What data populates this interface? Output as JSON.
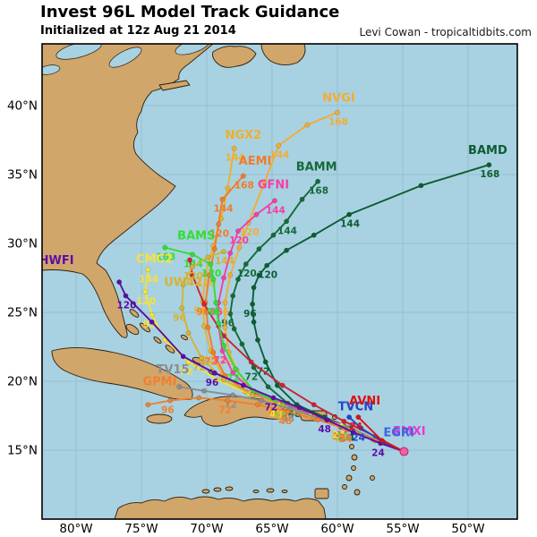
{
  "header": {
    "title": "Invest 96L Model Track Guidance",
    "subtitle": "Initialized at 12z Aug 21 2014",
    "credit": "Levi Cowan - tropicaltidbits.com"
  },
  "map": {
    "sea_color": "#a8d2e2",
    "land_color": "#d1a66b",
    "coast_color": "#2b1d0e",
    "grid_color": "#93bed2",
    "frame_color": "#000000",
    "axis_text_color": "#000000"
  },
  "chart_data": {
    "type": "line",
    "title": "Invest 96L Model Track Guidance",
    "subtitle": "Initialized at 12z Aug 21 2014",
    "x_axis": {
      "label": "Longitude",
      "ticks": [
        {
          "label": "80°W",
          "lon_w": 80
        },
        {
          "label": "75°W",
          "lon_w": 75
        },
        {
          "label": "70°W",
          "lon_w": 70
        },
        {
          "label": "65°W",
          "lon_w": 65
        },
        {
          "label": "60°W",
          "lon_w": 60
        },
        {
          "label": "55°W",
          "lon_w": 55
        },
        {
          "label": "50°W",
          "lon_w": 50
        }
      ]
    },
    "y_axis": {
      "label": "Latitude",
      "ticks": [
        {
          "label": "40°N",
          "lat_n": 40
        },
        {
          "label": "35°N",
          "lat_n": 35
        },
        {
          "label": "30°N",
          "lat_n": 30
        },
        {
          "label": "25°N",
          "lat_n": 25
        },
        {
          "label": "20°N",
          "lat_n": 20
        },
        {
          "label": "15°N",
          "lat_n": 15
        }
      ]
    },
    "origin_marker": {
      "lon_w": 54.9,
      "lat_n": 14.9,
      "color": "#f45fa2"
    },
    "tracks": [
      {
        "name": "BAMD",
        "color": "#0d5c34",
        "label_pos": [
          48.5,
          36.5
        ],
        "points": [
          [
            54.9,
            14.9
          ],
          [
            56.9,
            15.7
          ],
          [
            59.0,
            16.6,
            "24"
          ],
          [
            61.0,
            17.4
          ],
          [
            63.1,
            18.3,
            "48"
          ],
          [
            64.6,
            19.7
          ],
          [
            65.5,
            21.4,
            "72"
          ],
          [
            66.1,
            23.0
          ],
          [
            66.4,
            24.3
          ],
          [
            66.5,
            25.6,
            "96"
          ],
          [
            66.4,
            26.8
          ],
          [
            66.0,
            27.7
          ],
          [
            65.4,
            28.4,
            "120"
          ],
          [
            63.9,
            29.5
          ],
          [
            61.8,
            30.6
          ],
          [
            59.1,
            32.1,
            "144"
          ],
          [
            53.6,
            34.2
          ],
          [
            48.4,
            35.7,
            "168"
          ]
        ]
      },
      {
        "name": "BAMM",
        "color": "#156a38",
        "label_pos": [
          61.6,
          35.3
        ],
        "points": [
          [
            54.9,
            14.9
          ],
          [
            57.1,
            15.8
          ],
          [
            59.2,
            16.6,
            "24"
          ],
          [
            61.5,
            17.5
          ],
          [
            63.8,
            18.4,
            "48"
          ],
          [
            65.3,
            19.6
          ],
          [
            66.4,
            21.0,
            "72"
          ],
          [
            67.3,
            22.7
          ],
          [
            67.9,
            23.8
          ],
          [
            68.2,
            24.9,
            "96"
          ],
          [
            68.0,
            26.2
          ],
          [
            67.6,
            27.4
          ],
          [
            67.0,
            28.5,
            "120"
          ],
          [
            66.0,
            29.6
          ],
          [
            64.9,
            30.6
          ],
          [
            63.9,
            31.6,
            "144"
          ],
          [
            62.7,
            33.2
          ],
          [
            61.5,
            34.5,
            "168"
          ]
        ]
      },
      {
        "name": "NVGI",
        "color": "#f3ac34",
        "label_pos": [
          59.9,
          40.3
        ],
        "points": [
          [
            54.9,
            14.9
          ],
          [
            57.1,
            15.7
          ],
          [
            59.4,
            16.6,
            "24"
          ],
          [
            61.7,
            17.3
          ],
          [
            64.0,
            18.1,
            "48"
          ],
          [
            66.3,
            19.0
          ],
          [
            67.7,
            20.8
          ],
          [
            68.3,
            22.1,
            "72"
          ],
          [
            68.6,
            23.9
          ],
          [
            68.6,
            25.7,
            "96"
          ],
          [
            68.2,
            27.7
          ],
          [
            67.5,
            29.7
          ],
          [
            66.8,
            31.5,
            "120"
          ],
          [
            65.6,
            34.4
          ],
          [
            64.5,
            37.1,
            "144"
          ],
          [
            62.3,
            38.6
          ],
          [
            60.0,
            39.5,
            "168"
          ]
        ]
      },
      {
        "name": "NGX2",
        "color": "#eeb02c",
        "label_pos": [
          67.2,
          37.6
        ],
        "points": [
          [
            54.9,
            14.9
          ],
          [
            57.3,
            15.8
          ],
          [
            59.8,
            16.8,
            "24"
          ],
          [
            62.3,
            17.6
          ],
          [
            64.7,
            18.4,
            "48"
          ],
          [
            67.1,
            19.3
          ],
          [
            68.8,
            20.5
          ],
          [
            69.7,
            22.2,
            "72"
          ],
          [
            70.2,
            24.0
          ],
          [
            70.3,
            25.8,
            "96"
          ],
          [
            70.1,
            27.8,
            "120"
          ],
          [
            69.5,
            29.8
          ],
          [
            68.9,
            31.8
          ],
          [
            68.4,
            34.0
          ],
          [
            67.9,
            36.9,
            "144"
          ]
        ]
      },
      {
        "name": "AEMI",
        "color": "#f07c2a",
        "label_pos": [
          66.3,
          35.7
        ],
        "points": [
          [
            54.9,
            14.9
          ],
          [
            57.3,
            15.8
          ],
          [
            59.7,
            16.7,
            "24"
          ],
          [
            62.1,
            17.5
          ],
          [
            64.6,
            18.4,
            "48"
          ],
          [
            66.9,
            19.2
          ],
          [
            68.6,
            20.4
          ],
          [
            69.5,
            22.1,
            "72"
          ],
          [
            69.9,
            23.9
          ],
          [
            70.1,
            25.7,
            "96"
          ],
          [
            69.8,
            27.7
          ],
          [
            69.4,
            29.6
          ],
          [
            69.1,
            31.4,
            "120"
          ],
          [
            68.8,
            33.2,
            "144"
          ],
          [
            67.2,
            34.9,
            "168"
          ]
        ]
      },
      {
        "name": "GFNI",
        "color": "#f43fa6",
        "label_pos": [
          64.9,
          34.0
        ],
        "points": [
          [
            54.9,
            14.9
          ],
          [
            57.2,
            15.8
          ],
          [
            59.5,
            16.8,
            "24"
          ],
          [
            61.8,
            17.5
          ],
          [
            64.2,
            18.4,
            "48"
          ],
          [
            66.4,
            19.2
          ],
          [
            68.0,
            20.6
          ],
          [
            68.8,
            22.2,
            "72"
          ],
          [
            69.1,
            24.0
          ],
          [
            69.1,
            25.7,
            "96"
          ],
          [
            68.7,
            27.5
          ],
          [
            68.2,
            29.3
          ],
          [
            67.6,
            30.9,
            "120"
          ],
          [
            66.2,
            32.1
          ],
          [
            64.8,
            33.1,
            "144"
          ]
        ]
      },
      {
        "name": "",
        "color": "#cc2233",
        "label_pos": null,
        "points": [
          [
            54.9,
            14.9
          ],
          [
            57.1,
            16.0
          ],
          [
            59.5,
            17.1
          ],
          [
            61.8,
            18.3
          ],
          [
            64.2,
            19.7
          ],
          [
            66.6,
            21.4
          ],
          [
            68.7,
            23.3
          ],
          [
            70.2,
            25.6
          ],
          [
            71.1,
            27.7
          ],
          [
            71.3,
            28.8
          ]
        ]
      },
      {
        "name": "BAMS",
        "color": "#33dd33",
        "label_pos": [
          70.8,
          30.3
        ],
        "points": [
          [
            54.9,
            14.9
          ],
          [
            57.2,
            15.8
          ],
          [
            59.5,
            16.7,
            "24"
          ],
          [
            61.8,
            17.4
          ],
          [
            64.2,
            18.3,
            "48"
          ],
          [
            66.4,
            19.3
          ],
          [
            67.8,
            20.9,
            "72"
          ],
          [
            68.7,
            22.6
          ],
          [
            69.1,
            24.2
          ],
          [
            69.3,
            25.7,
            "96"
          ],
          [
            69.5,
            27.4
          ],
          [
            69.7,
            28.5,
            "120"
          ],
          [
            71.1,
            29.2,
            "144"
          ],
          [
            73.2,
            29.7,
            "168"
          ]
        ]
      },
      {
        "name": "CMC2",
        "color": "#f5e23a",
        "label_pos": [
          74.0,
          28.6
        ],
        "points": [
          [
            54.9,
            14.9
          ],
          [
            57.3,
            15.9
          ],
          [
            59.7,
            16.8,
            "24"
          ],
          [
            62.1,
            17.5
          ],
          [
            64.5,
            18.3,
            "48"
          ],
          [
            66.8,
            19.1
          ],
          [
            69.2,
            20.1
          ],
          [
            71.4,
            21.4,
            "72"
          ],
          [
            73.2,
            23.0
          ],
          [
            74.2,
            24.8,
            "96"
          ],
          [
            74.7,
            26.5,
            "120"
          ],
          [
            74.5,
            28.1,
            "144"
          ]
        ]
      },
      {
        "name": "UW42",
        "color": "#d7b22e",
        "label_pos": [
          71.8,
          26.9
        ],
        "points": [
          [
            54.9,
            14.9
          ],
          [
            57.2,
            15.8
          ],
          [
            59.5,
            16.6,
            "24"
          ],
          [
            61.8,
            17.4
          ],
          [
            64.2,
            18.2,
            "48"
          ],
          [
            66.5,
            19.0
          ],
          [
            68.7,
            20.1
          ],
          [
            70.4,
            21.7,
            "72"
          ],
          [
            71.4,
            23.5
          ],
          [
            71.9,
            25.3,
            "96"
          ],
          [
            71.8,
            27.0
          ],
          [
            71.1,
            28.3,
            "120"
          ],
          [
            69.9,
            29.0
          ],
          [
            68.7,
            29.4,
            "144"
          ]
        ]
      },
      {
        "name": "TV15",
        "color": "#8c8c8c",
        "label_pos": [
          72.6,
          20.6
        ],
        "points": [
          [
            54.9,
            14.9
          ],
          [
            57.1,
            15.8
          ],
          [
            59.2,
            16.6,
            "24"
          ],
          [
            61.4,
            17.3
          ],
          [
            63.6,
            18.0,
            "48"
          ],
          [
            65.8,
            18.6
          ],
          [
            68.0,
            19.0,
            "72"
          ],
          [
            70.2,
            19.3
          ],
          [
            72.1,
            19.6
          ]
        ]
      },
      {
        "name": "GPMI",
        "color": "#f08030",
        "label_pos": [
          73.6,
          19.7
        ],
        "points": [
          [
            54.9,
            14.9
          ],
          [
            57.1,
            15.7
          ],
          [
            59.2,
            16.5,
            "24"
          ],
          [
            61.5,
            17.2
          ],
          [
            63.8,
            17.8,
            "48"
          ],
          [
            66.1,
            18.3
          ],
          [
            68.4,
            18.6,
            "72"
          ],
          [
            70.6,
            18.8
          ],
          [
            72.8,
            18.6,
            "96"
          ],
          [
            74.5,
            18.3
          ]
        ]
      },
      {
        "name": "HWFI",
        "color": "#5b0ea6",
        "label_pos": [
          81.5,
          28.5
        ],
        "points": [
          [
            54.9,
            14.9
          ],
          [
            56.7,
            15.5,
            "24"
          ],
          [
            58.8,
            16.3
          ],
          [
            60.8,
            17.2,
            "48"
          ],
          [
            62.9,
            18.1
          ],
          [
            64.9,
            18.8,
            "72"
          ],
          [
            67.2,
            19.7
          ],
          [
            69.4,
            20.6,
            "96"
          ],
          [
            71.8,
            21.8
          ],
          [
            74.2,
            24.3
          ],
          [
            76.2,
            26.2,
            "120"
          ],
          [
            76.7,
            27.2
          ]
        ]
      },
      {
        "name": "TVCN",
        "color": "#2244cc",
        "label_pos": [
          58.6,
          17.9
        ],
        "points": [
          [
            54.9,
            14.9
          ],
          [
            56.5,
            15.6
          ],
          [
            58.2,
            16.6,
            "24"
          ],
          [
            59.1,
            17.4
          ]
        ]
      },
      {
        "name": "AVNI",
        "color": "#e01010",
        "label_pos": [
          57.9,
          18.3
        ],
        "points": [
          [
            54.9,
            14.9
          ],
          [
            56.6,
            15.7
          ],
          [
            58.4,
            17.4,
            "24"
          ]
        ]
      },
      {
        "name": "EMXI",
        "color": "#e63ad2",
        "label_pos": [
          54.5,
          16.1
        ],
        "points": [
          [
            54.9,
            14.9
          ]
        ]
      },
      {
        "name": "EGRI",
        "color": "#3a66e0",
        "label_pos": [
          55.3,
          16.0
        ],
        "points": [
          [
            54.9,
            14.9
          ]
        ]
      }
    ]
  }
}
